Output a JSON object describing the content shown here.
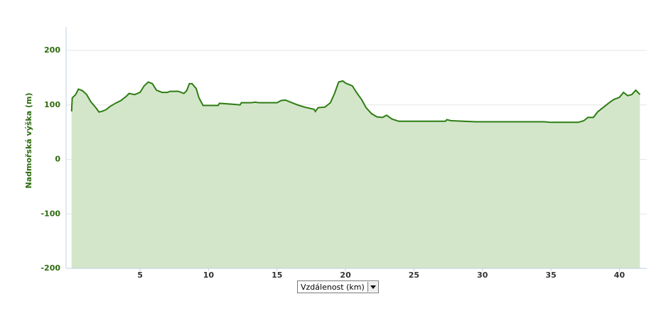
{
  "chart_data": {
    "type": "area",
    "y_label": "Nadmořská výška (m)",
    "x_label": "Vzdálenost (km)",
    "x": [
      0,
      0.05,
      0.3,
      0.5,
      0.8,
      1.1,
      1.4,
      1.8,
      2.0,
      2.2,
      2.5,
      2.8,
      3.2,
      3.6,
      4.0,
      4.2,
      4.6,
      5.0,
      5.3,
      5.6,
      5.9,
      6.2,
      6.6,
      7.0,
      7.2,
      7.8,
      8.2,
      8.4,
      8.6,
      8.8,
      9.1,
      9.3,
      9.6,
      10.0,
      10.7,
      10.8,
      11.9,
      12.3,
      12.4,
      13.1,
      13.4,
      13.7,
      15.0,
      15.3,
      15.6,
      16.0,
      16.5,
      17.0,
      17.7,
      17.8,
      18.0,
      18.5,
      18.9,
      19.2,
      19.5,
      19.8,
      20.0,
      20.5,
      20.8,
      21.2,
      21.5,
      21.9,
      22.3,
      22.7,
      23.0,
      23.4,
      23.9,
      25.0,
      27.3,
      27.4,
      27.7,
      29.5,
      34.5,
      35.0,
      37.0,
      37.4,
      37.7,
      38.1,
      38.4,
      38.8,
      39.3,
      39.6,
      40.0,
      40.3,
      40.6,
      40.9,
      41.2,
      41.5
    ],
    "series": [
      {
        "color": "#2e7d14",
        "fill": "#d3e6ca",
        "values": [
          88,
          113,
          119,
          129,
          126,
          119,
          106,
          94,
          87,
          88,
          91,
          97,
          103,
          108,
          116,
          121,
          119,
          123,
          135,
          142,
          139,
          127,
          123,
          123,
          125,
          125,
          121,
          126,
          139,
          139,
          130,
          113,
          99,
          99,
          99,
          103,
          101,
          100,
          104,
          104,
          105,
          104,
          104,
          108,
          109,
          105,
          100,
          96,
          92,
          88,
          95,
          96,
          104,
          121,
          142,
          144,
          140,
          135,
          123,
          109,
          95,
          84,
          78,
          77,
          81,
          74,
          70,
          70,
          70,
          73,
          71,
          69,
          69,
          68,
          68,
          71,
          77,
          77,
          87,
          95,
          105,
          110,
          114,
          123,
          117,
          119,
          127,
          119
        ]
      }
    ],
    "xlim": [
      -0.4,
      42
    ],
    "ylim": [
      -200,
      243
    ],
    "xticks": [
      5,
      10,
      15,
      20,
      25,
      30,
      35,
      40
    ],
    "yticks": [
      -200,
      -100,
      0,
      100,
      200
    ],
    "grid": true
  }
}
